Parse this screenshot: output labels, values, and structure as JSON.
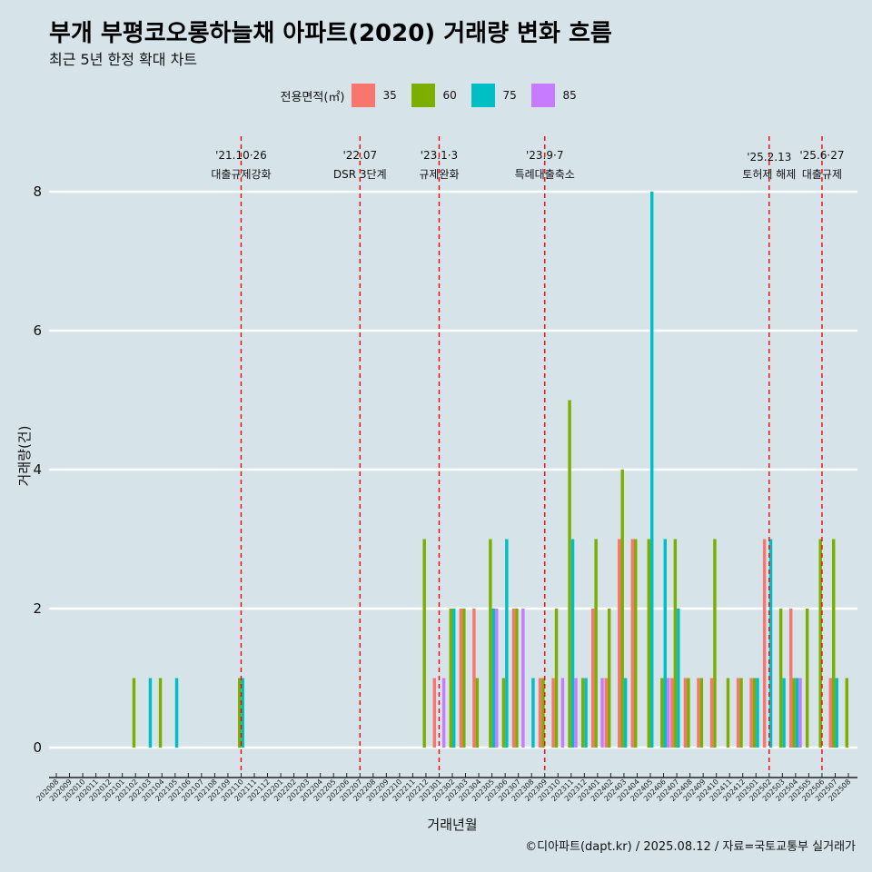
{
  "title": "부개 부평코오롱하늘채 아파트(2020) 거래량 변화 흐름",
  "subtitle": "최근 5년 한정 확대 차트",
  "caption": "©디아파트(dapt.kr) / 2025.08.12 / 자료=국토교통부 실거래가",
  "legend": {
    "title": "전용면적(㎡)",
    "items": [
      {
        "label": "35",
        "color": "#F8766D"
      },
      {
        "label": "60",
        "color": "#7CAE00"
      },
      {
        "label": "75",
        "color": "#00BFC4"
      },
      {
        "label": "85",
        "color": "#C77CFF"
      }
    ]
  },
  "chart_data": {
    "type": "bar",
    "xlabel": "거래년월",
    "ylabel": "거래량(건)",
    "ylim": [
      0,
      8
    ],
    "yticks": [
      0,
      2,
      4,
      6,
      8
    ],
    "grid": "horizontal",
    "legend_position": "top",
    "categories": [
      "202008",
      "202009",
      "202010",
      "202011",
      "202012",
      "202101",
      "202102",
      "202103",
      "202104",
      "202105",
      "202106",
      "202107",
      "202108",
      "202109",
      "202110",
      "202111",
      "202112",
      "202201",
      "202202",
      "202203",
      "202204",
      "202205",
      "202206",
      "202207",
      "202208",
      "202209",
      "202210",
      "202211",
      "202212",
      "202301",
      "202302",
      "202303",
      "202304",
      "202305",
      "202306",
      "202307",
      "202308",
      "202309",
      "202310",
      "202311",
      "202312",
      "202401",
      "202402",
      "202403",
      "202404",
      "202405",
      "202406",
      "202407",
      "202408",
      "202409",
      "202410",
      "202411",
      "202412",
      "202501",
      "202502",
      "202503",
      "202504",
      "202505",
      "202506",
      "202507",
      "202508"
    ],
    "series": [
      {
        "name": "35",
        "color": "#F8766D",
        "values": [
          0,
          0,
          0,
          0,
          0,
          0,
          0,
          0,
          0,
          0,
          0,
          0,
          0,
          0,
          0,
          0,
          0,
          0,
          0,
          0,
          0,
          0,
          0,
          0,
          0,
          0,
          0,
          0,
          0,
          1,
          0,
          2,
          2,
          0,
          0,
          2,
          0,
          1,
          1,
          0,
          0,
          2,
          1,
          3,
          3,
          0,
          0,
          1,
          1,
          1,
          1,
          0,
          1,
          1,
          3,
          0,
          2,
          0,
          0,
          1,
          0
        ]
      },
      {
        "name": "60",
        "color": "#7CAE00",
        "values": [
          0,
          0,
          0,
          0,
          0,
          0,
          1,
          0,
          1,
          0,
          0,
          0,
          0,
          0,
          1,
          0,
          0,
          0,
          0,
          0,
          0,
          0,
          0,
          0,
          0,
          0,
          0,
          0,
          3,
          0,
          2,
          2,
          1,
          3,
          1,
          2,
          0,
          1,
          2,
          5,
          1,
          3,
          2,
          4,
          3,
          3,
          1,
          3,
          1,
          1,
          3,
          1,
          1,
          1,
          0,
          2,
          1,
          2,
          3,
          3,
          1
        ]
      },
      {
        "name": "75",
        "color": "#00BFC4",
        "values": [
          0,
          0,
          0,
          0,
          0,
          0,
          0,
          1,
          0,
          1,
          0,
          0,
          0,
          0,
          1,
          0,
          0,
          0,
          0,
          0,
          0,
          0,
          0,
          0,
          0,
          0,
          0,
          0,
          0,
          0,
          2,
          0,
          0,
          2,
          3,
          0,
          1,
          0,
          0,
          3,
          1,
          0,
          0,
          1,
          0,
          8,
          3,
          2,
          0,
          0,
          0,
          0,
          0,
          1,
          3,
          1,
          1,
          0,
          0,
          1,
          0
        ]
      },
      {
        "name": "85",
        "color": "#C77CFF",
        "values": [
          0,
          0,
          0,
          0,
          0,
          0,
          0,
          0,
          0,
          0,
          0,
          0,
          0,
          0,
          0,
          0,
          0,
          0,
          0,
          0,
          0,
          0,
          0,
          0,
          0,
          0,
          0,
          0,
          0,
          1,
          0,
          0,
          0,
          2,
          0,
          2,
          0,
          0,
          1,
          1,
          0,
          1,
          0,
          0,
          0,
          0,
          1,
          0,
          0,
          0,
          0,
          0,
          0,
          0,
          0,
          0,
          1,
          0,
          0,
          0,
          0
        ]
      }
    ],
    "events": [
      {
        "month": "202110",
        "date": "'21.10·26",
        "label": "대출규제강화"
      },
      {
        "month": "202207",
        "date": "'22.07",
        "label": "DSR 3단계"
      },
      {
        "month": "202301",
        "date": "'23.1·3",
        "label": "규제완화"
      },
      {
        "month": "202309",
        "date": "'23.9·7",
        "label": "특례대출축소"
      },
      {
        "month": "202502",
        "date": "'25.2.13",
        "label": "토허제 해제"
      },
      {
        "month": "202506",
        "date": "'25.6·27",
        "label": "대출규제"
      }
    ]
  }
}
